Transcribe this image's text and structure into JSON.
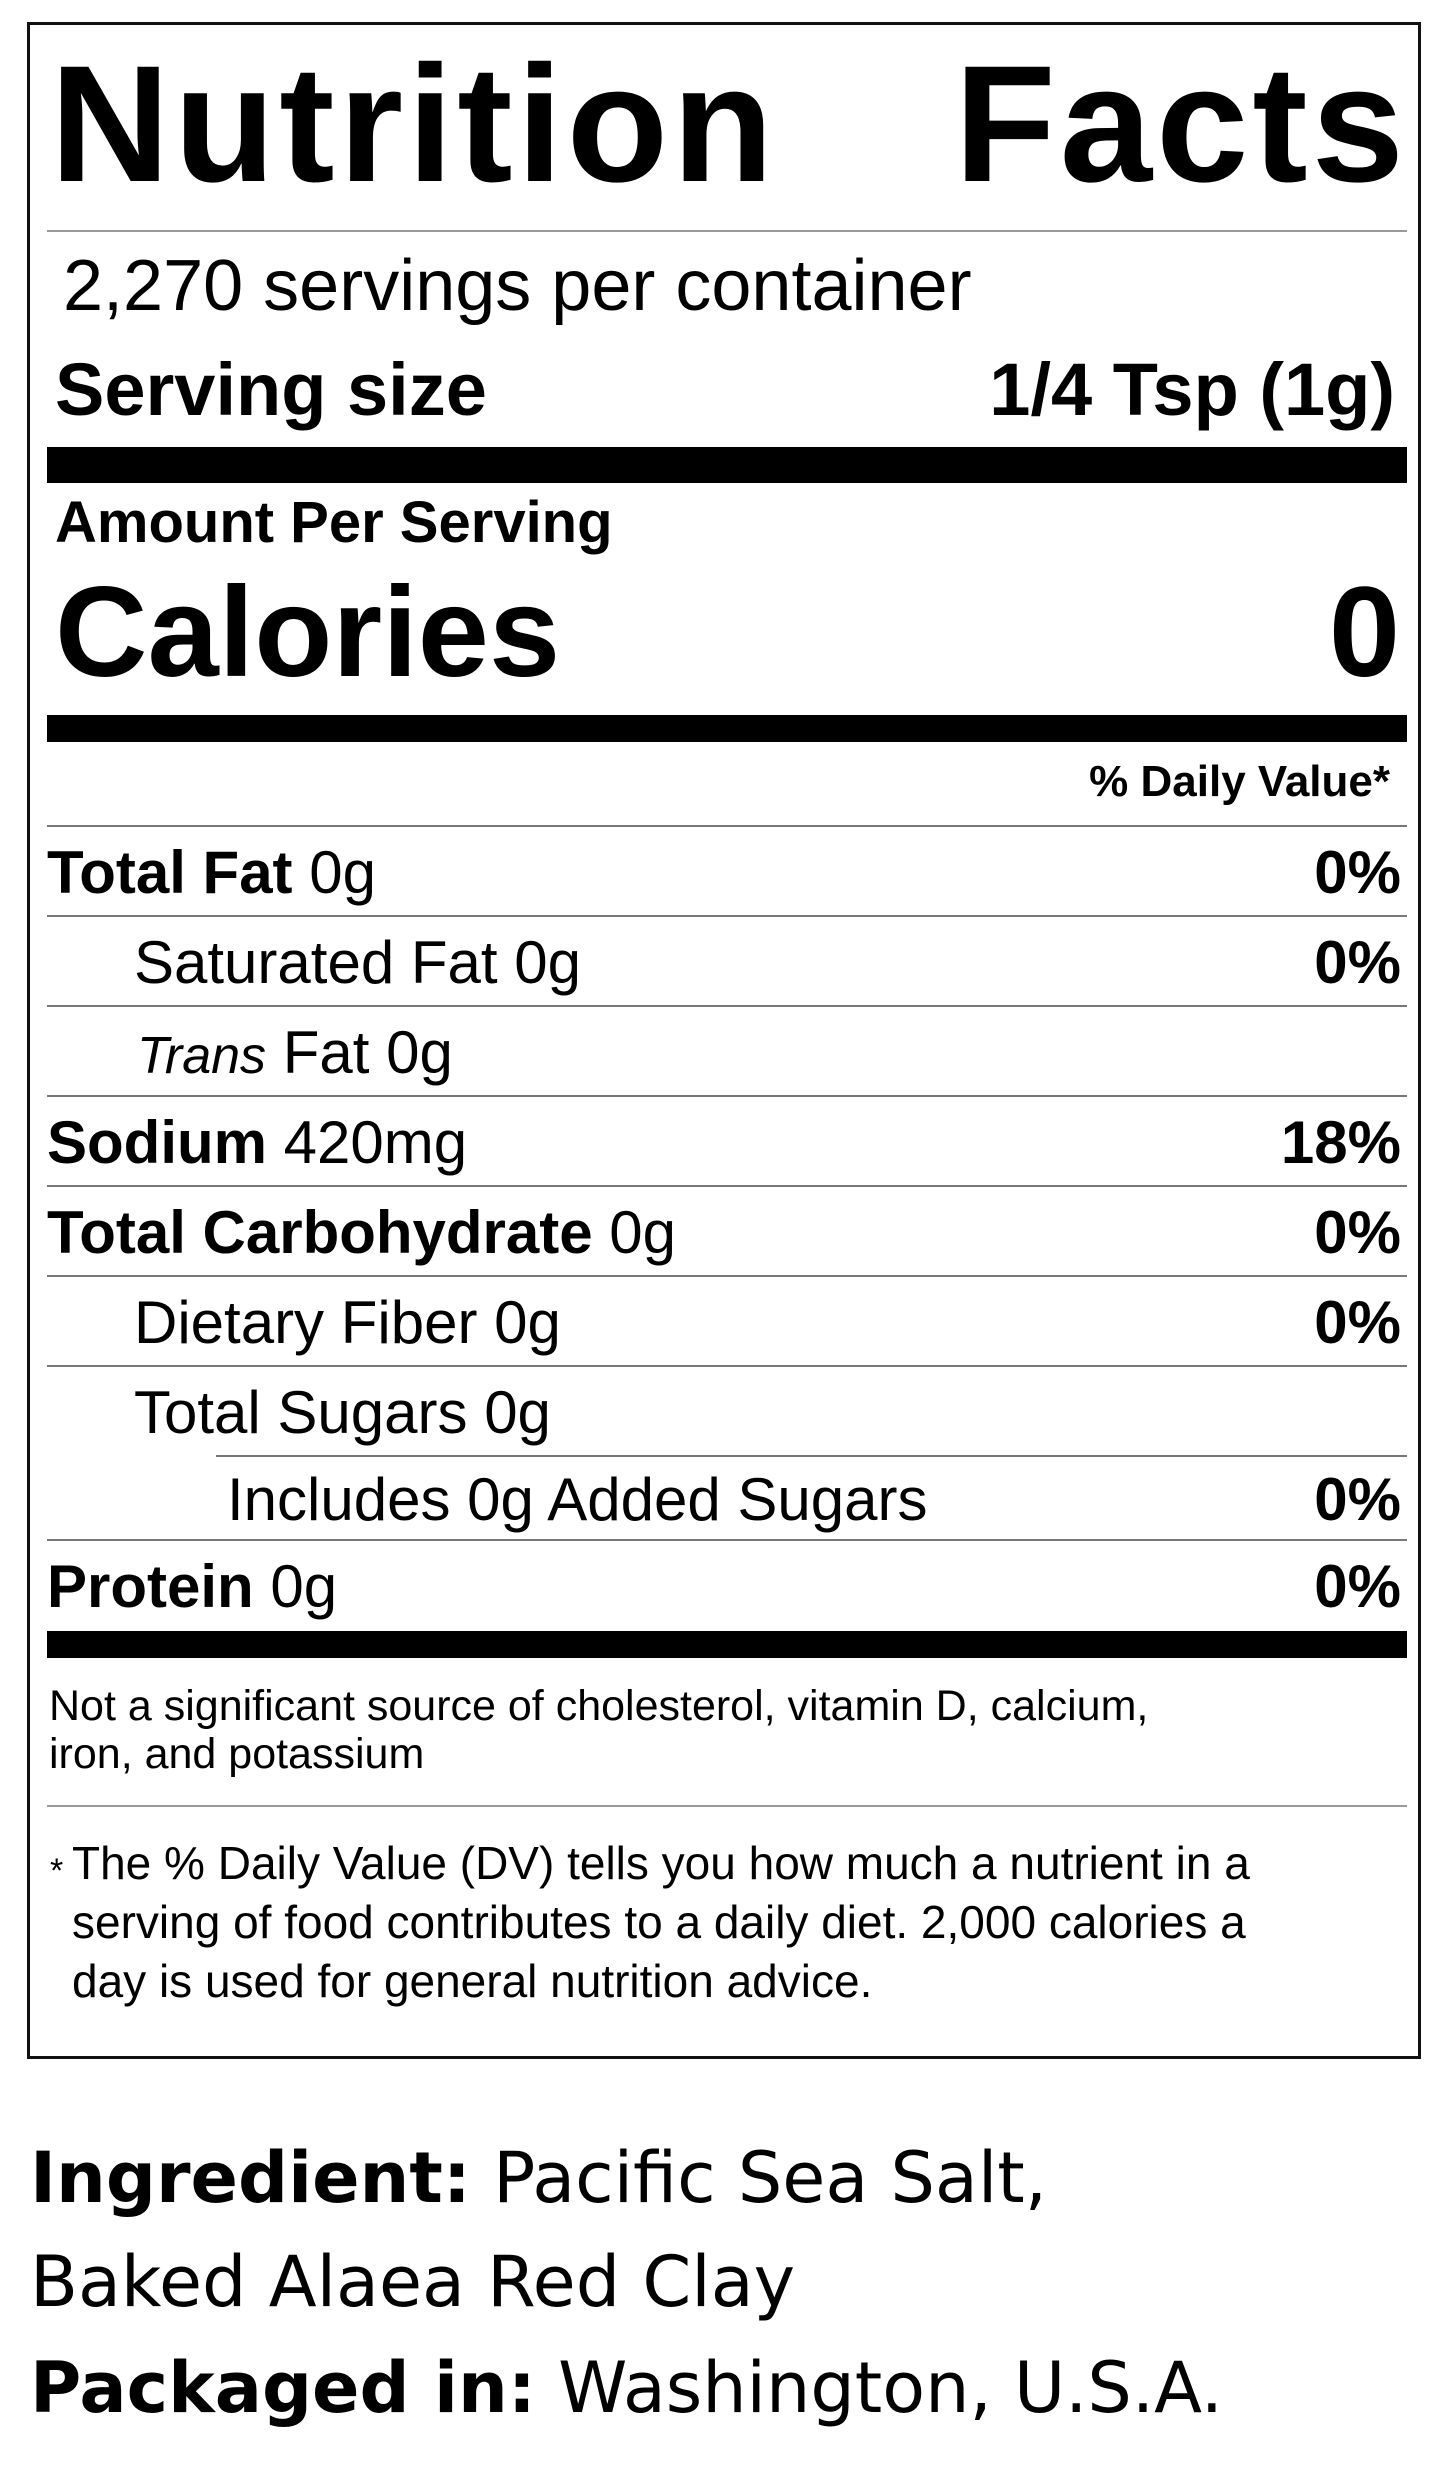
{
  "title": {
    "word1": "Nutrition",
    "word2": "Facts"
  },
  "servings_per_container": "2,270 servings per container",
  "serving_size": {
    "label": "Serving size",
    "value": "1/4 Tsp (1g)"
  },
  "amount_per_serving": "Amount Per Serving",
  "calories": {
    "label": "Calories",
    "value": "0"
  },
  "daily_value_header": "% Daily Value*",
  "nutrients": [
    {
      "name": "Total Fat",
      "amount": "0g",
      "dv": "0%"
    },
    {
      "name": "Saturated Fat",
      "amount": "0g",
      "dv": "0%"
    },
    {
      "name": "Trans",
      "name_suffix": "Fat",
      "amount": "0g",
      "dv": ""
    },
    {
      "name": "Sodium",
      "amount": "420mg",
      "dv": "18%"
    },
    {
      "name": "Total Carbohydrate",
      "amount": "0g",
      "dv": "0%"
    },
    {
      "name": "Dietary Fiber",
      "amount": "0g",
      "dv": "0%"
    },
    {
      "name": "Total Sugars",
      "amount": "0g",
      "dv": ""
    },
    {
      "name": "Includes 0g Added Sugars",
      "amount": "",
      "dv": "0%"
    },
    {
      "name": "Protein",
      "amount": "0g",
      "dv": "0%"
    }
  ],
  "not_significant": [
    "Not a significant source of cholesterol, vitamin D, calcium,",
    "iron, and potassium"
  ],
  "footnote": {
    "asterisk": "*",
    "lines": [
      "The % Daily Value (DV) tells you how much a nutrient in a",
      "serving of food contributes to a daily diet. 2,000 calories a",
      "day is used for general nutrition advice."
    ]
  },
  "ingredient": {
    "label": "Ingredient:",
    "line1": "Pacific Sea Salt,",
    "line2": "Baked Alaea Red Clay"
  },
  "packaged": {
    "label": "Packaged in:",
    "value": "Washington, U.S.A."
  }
}
